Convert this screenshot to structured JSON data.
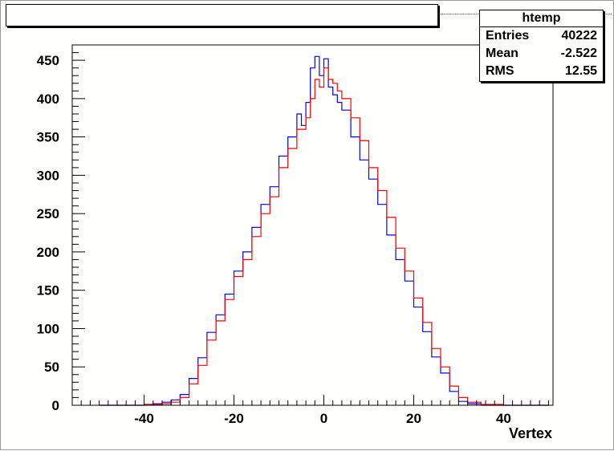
{
  "stats": {
    "title": "htemp",
    "rows": [
      {
        "label": "Entries",
        "value": "40222"
      },
      {
        "label": "Mean",
        "value": "-2.522"
      },
      {
        "label": "RMS",
        "value": "12.55"
      }
    ]
  },
  "chart_data": {
    "type": "line",
    "xlabel": "Vertex",
    "ylabel": "",
    "xlim": [
      -56,
      51
    ],
    "ylim": [
      0,
      470
    ],
    "grid": false,
    "x_ticks": [
      -40,
      -20,
      0,
      20,
      40
    ],
    "y_ticks": [
      0,
      50,
      100,
      150,
      200,
      250,
      300,
      350,
      400,
      450
    ],
    "series": [
      {
        "color": "#0000ff",
        "points": [
          [
            -50,
            0
          ],
          [
            -45,
            0
          ],
          [
            -40,
            1
          ],
          [
            -38,
            2
          ],
          [
            -36,
            4
          ],
          [
            -34,
            7
          ],
          [
            -32,
            14
          ],
          [
            -30,
            35
          ],
          [
            -28,
            62
          ],
          [
            -26,
            95
          ],
          [
            -24,
            118
          ],
          [
            -22,
            145
          ],
          [
            -20,
            175
          ],
          [
            -18,
            200
          ],
          [
            -16,
            232
          ],
          [
            -14,
            262
          ],
          [
            -12,
            285
          ],
          [
            -10,
            325
          ],
          [
            -8,
            350
          ],
          [
            -6,
            380
          ],
          [
            -5,
            365
          ],
          [
            -4,
            395
          ],
          [
            -3,
            440
          ],
          [
            -2,
            455
          ],
          [
            -1,
            430
          ],
          [
            0,
            452
          ],
          [
            1,
            415
          ],
          [
            2,
            405
          ],
          [
            3,
            395
          ],
          [
            4,
            385
          ],
          [
            6,
            350
          ],
          [
            8,
            320
          ],
          [
            10,
            295
          ],
          [
            12,
            262
          ],
          [
            14,
            222
          ],
          [
            16,
            190
          ],
          [
            18,
            162
          ],
          [
            20,
            128
          ],
          [
            22,
            96
          ],
          [
            24,
            63
          ],
          [
            26,
            42
          ],
          [
            28,
            18
          ],
          [
            30,
            5
          ],
          [
            32,
            2
          ],
          [
            35,
            0
          ],
          [
            50,
            0
          ]
        ]
      },
      {
        "color": "#ff0000",
        "points": [
          [
            -50,
            0
          ],
          [
            -45,
            0
          ],
          [
            -40,
            1
          ],
          [
            -38,
            1
          ],
          [
            -36,
            2
          ],
          [
            -34,
            4
          ],
          [
            -32,
            10
          ],
          [
            -30,
            28
          ],
          [
            -28,
            52
          ],
          [
            -26,
            85
          ],
          [
            -24,
            110
          ],
          [
            -22,
            138
          ],
          [
            -20,
            168
          ],
          [
            -18,
            190
          ],
          [
            -16,
            220
          ],
          [
            -14,
            250
          ],
          [
            -12,
            272
          ],
          [
            -10,
            310
          ],
          [
            -8,
            335
          ],
          [
            -6,
            360
          ],
          [
            -4,
            375
          ],
          [
            -3,
            400
          ],
          [
            -2,
            425
          ],
          [
            -1,
            415
          ],
          [
            0,
            440
          ],
          [
            1,
            425
          ],
          [
            2,
            420
          ],
          [
            3,
            410
          ],
          [
            4,
            400
          ],
          [
            6,
            375
          ],
          [
            8,
            345
          ],
          [
            10,
            310
          ],
          [
            12,
            280
          ],
          [
            14,
            245
          ],
          [
            16,
            205
          ],
          [
            18,
            175
          ],
          [
            20,
            140
          ],
          [
            22,
            108
          ],
          [
            24,
            74
          ],
          [
            26,
            50
          ],
          [
            28,
            25
          ],
          [
            30,
            10
          ],
          [
            32,
            4
          ],
          [
            35,
            1
          ],
          [
            40,
            0
          ],
          [
            50,
            0
          ]
        ]
      }
    ]
  }
}
